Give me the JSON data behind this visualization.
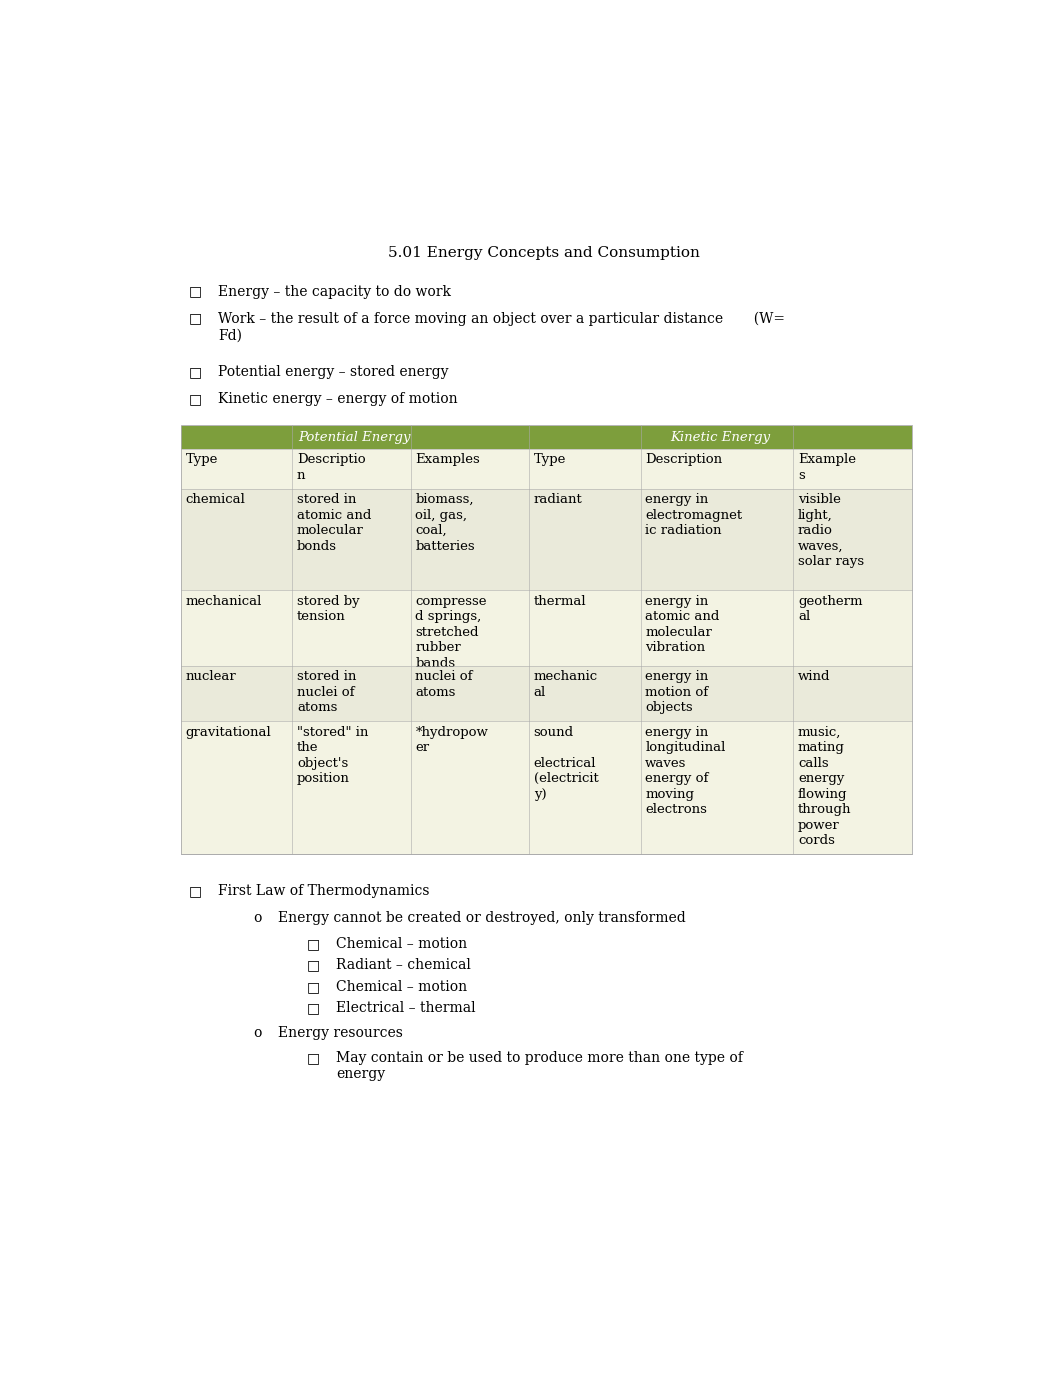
{
  "title": "5.01 Energy Concepts and Consumption",
  "bullet_char": "□",
  "bullets": [
    "Energy – the capacity to do work",
    "Work – the result of a force moving an object over a particular distance       (W=\nFd)",
    "Potential energy – stored energy",
    "Kinetic energy – energy of motion"
  ],
  "table_header_bg": "#7d9e3c",
  "table_header_text": "#ffffff",
  "table_bg_odd": "#f3f3e3",
  "table_bg_even": "#eaeada",
  "table_border": "#aaaaaa",
  "pe_header": "Potential Energy",
  "ke_header": "Kinetic Energy",
  "col_headers": [
    "Type",
    "Descriptio\nn",
    "Examples",
    "Type",
    "Description",
    "Example\ns"
  ],
  "rows": [
    [
      "chemical",
      "stored in\natomic and\nmolecular\nbonds",
      "biomass,\noil, gas,\ncoal,\nbatteries",
      "radiant",
      "energy in\nelectromagnet\nic radiation",
      "visible\nlight,\nradio\nwaves,\nsolar rays"
    ],
    [
      "mechanical",
      "stored by\ntension",
      "compresse\nd springs,\nstretched\nrubber\nbands",
      "thermal",
      "energy in\natomic and\nmolecular\nvibration",
      "geotherm\nal"
    ],
    [
      "nuclear",
      "stored in\nnuclei of\natoms",
      "nuclei of\natoms",
      "mechanic\nal",
      "energy in\nmotion of\nobjects",
      "wind"
    ],
    [
      "gravitational",
      "\"stored\" in\nthe\nobject's\nposition",
      "*hydropow\ner",
      "sound\n\nelectrical\n(electricit\ny)",
      "energy in\nlongitudinal\nwaves\nenergy of\nmoving\nelectrons",
      "music,\nmating\ncalls\nenergy\nflowing\nthrough\npower\ncords"
    ]
  ],
  "bottom_bullet": "First Law of Thermodynamics",
  "sub_bullet1": "Energy cannot be created or destroyed, only transformed",
  "sub_sub_bullets": [
    "Chemical – motion",
    "Radiant – chemical",
    "Chemical – motion",
    "Electrical – thermal"
  ],
  "sub_bullet2": "Energy resources",
  "sub_sub_bullets2": [
    "May contain or be used to produce more than one type of\nenergy"
  ],
  "bg_color": "#ffffff",
  "text_color": "#000000",
  "title_fontsize": 11,
  "body_fontsize": 10,
  "table_fontsize": 9.5
}
